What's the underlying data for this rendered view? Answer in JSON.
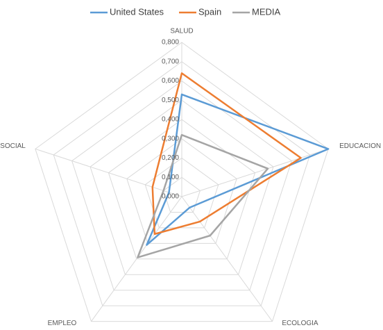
{
  "chart_data": {
    "type": "radar",
    "categories": [
      "SALUD",
      "EDUCACION",
      "ECOLOGIA",
      "EMPLEO",
      "BSOCIAL"
    ],
    "series": [
      {
        "name": "United States",
        "color": "#5b9bd5",
        "values": [
          0.53,
          0.8,
          0.07,
          0.31,
          0.07
        ]
      },
      {
        "name": "Spain",
        "color": "#ed7d31",
        "values": [
          0.64,
          0.65,
          0.16,
          0.24,
          0.16
        ]
      },
      {
        "name": "MEDIA",
        "color": "#a5a5a5",
        "values": [
          0.32,
          0.47,
          0.25,
          0.39,
          0.1
        ]
      }
    ],
    "ylim": [
      0,
      0.8
    ],
    "yticks": [
      {
        "value": 0,
        "label": "0,000"
      },
      {
        "value": 0.1,
        "label": "0,100"
      },
      {
        "value": 0.2,
        "label": "0,200"
      },
      {
        "value": 0.3,
        "label": "0,300"
      },
      {
        "value": 0.4,
        "label": "0,400"
      },
      {
        "value": 0.5,
        "label": "0,500"
      },
      {
        "value": 0.6,
        "label": "0,600"
      },
      {
        "value": 0.7,
        "label": "0,700"
      },
      {
        "value": 0.8,
        "label": "0,800"
      }
    ],
    "grid": true,
    "legend": "top"
  }
}
